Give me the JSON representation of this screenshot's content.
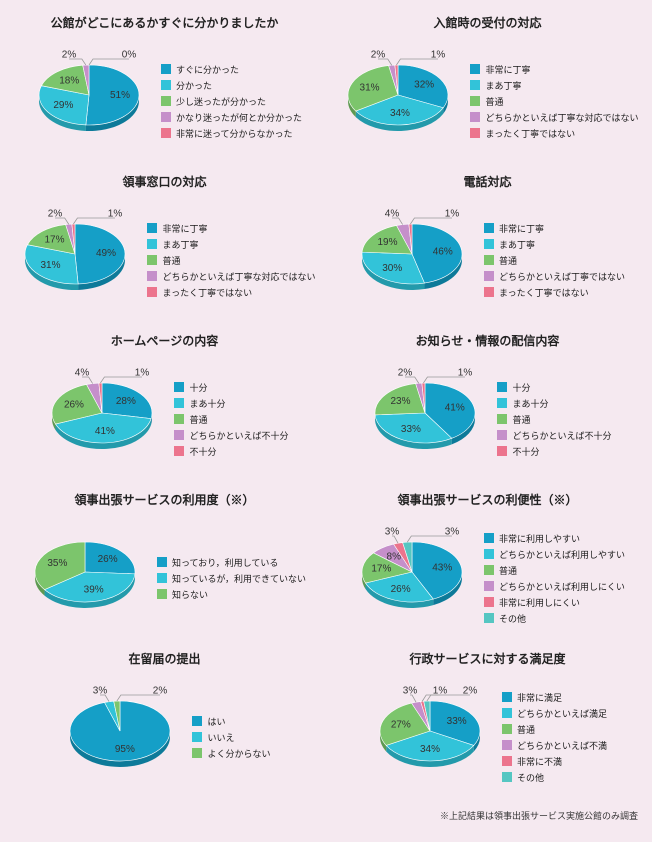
{
  "background_color": "#f5e9f0",
  "pie_radius": 50,
  "pie_3d_height": 6,
  "title_fontsize": 12,
  "legend_fontsize": 9,
  "footnote": "※上記結果は領事出張サービス実施公館のみ調査",
  "charts": [
    {
      "title": "公館がどこにあるかすぐに分かりましたか",
      "slices": [
        {
          "label": "すぐに分かった",
          "value": 51,
          "color": "#159fc7",
          "dark": "#0d7a99"
        },
        {
          "label": "分かった",
          "value": 29,
          "color": "#32c3d9",
          "dark": "#239aab"
        },
        {
          "label": "少し迷ったが分かった",
          "value": 18,
          "color": "#7cc56c",
          "dark": "#5e9a52"
        },
        {
          "label": "かなり迷ったが何とか分かった",
          "value": 2,
          "color": "#c58fca",
          "dark": "#9a6d9e"
        },
        {
          "label": "非常に迷って分からなかった",
          "value": 0,
          "color": "#ec748d",
          "dark": "#b95a6e"
        }
      ]
    },
    {
      "title": "入館時の受付の対応",
      "slices": [
        {
          "label": "非常に丁寧",
          "value": 32,
          "color": "#159fc7",
          "dark": "#0d7a99"
        },
        {
          "label": "まあ丁寧",
          "value": 34,
          "color": "#32c3d9",
          "dark": "#239aab"
        },
        {
          "label": "普通",
          "value": 31,
          "color": "#7cc56c",
          "dark": "#5e9a52"
        },
        {
          "label": "どちらかといえば丁寧な対応ではない",
          "value": 2,
          "color": "#c58fca",
          "dark": "#9a6d9e"
        },
        {
          "label": "まったく丁寧ではない",
          "value": 1,
          "color": "#ec748d",
          "dark": "#b95a6e"
        }
      ]
    },
    {
      "title": "領事窓口の対応",
      "slices": [
        {
          "label": "非常に丁寧",
          "value": 49,
          "color": "#159fc7",
          "dark": "#0d7a99"
        },
        {
          "label": "まあ丁寧",
          "value": 31,
          "color": "#32c3d9",
          "dark": "#239aab"
        },
        {
          "label": "普通",
          "value": 17,
          "color": "#7cc56c",
          "dark": "#5e9a52"
        },
        {
          "label": "どちらかといえば丁寧な対応ではない",
          "value": 2,
          "color": "#c58fca",
          "dark": "#9a6d9e"
        },
        {
          "label": "まったく丁寧ではない",
          "value": 1,
          "color": "#ec748d",
          "dark": "#b95a6e"
        }
      ]
    },
    {
      "title": "電話対応",
      "slices": [
        {
          "label": "非常に丁寧",
          "value": 46,
          "color": "#159fc7",
          "dark": "#0d7a99"
        },
        {
          "label": "まあ丁寧",
          "value": 30,
          "color": "#32c3d9",
          "dark": "#239aab"
        },
        {
          "label": "普通",
          "value": 19,
          "color": "#7cc56c",
          "dark": "#5e9a52"
        },
        {
          "label": "どちらかといえば丁寧ではない",
          "value": 4,
          "color": "#c58fca",
          "dark": "#9a6d9e"
        },
        {
          "label": "まったく丁寧ではない",
          "value": 1,
          "color": "#ec748d",
          "dark": "#b95a6e"
        }
      ]
    },
    {
      "title": "ホームページの内容",
      "slices": [
        {
          "label": "十分",
          "value": 28,
          "color": "#159fc7",
          "dark": "#0d7a99"
        },
        {
          "label": "まあ十分",
          "value": 41,
          "color": "#32c3d9",
          "dark": "#239aab"
        },
        {
          "label": "普通",
          "value": 26,
          "color": "#7cc56c",
          "dark": "#5e9a52"
        },
        {
          "label": "どちらかといえば不十分",
          "value": 4,
          "color": "#c58fca",
          "dark": "#9a6d9e"
        },
        {
          "label": "不十分",
          "value": 1,
          "color": "#ec748d",
          "dark": "#b95a6e"
        }
      ]
    },
    {
      "title": "お知らせ・情報の配信内容",
      "slices": [
        {
          "label": "十分",
          "value": 41,
          "color": "#159fc7",
          "dark": "#0d7a99"
        },
        {
          "label": "まあ十分",
          "value": 33,
          "color": "#32c3d9",
          "dark": "#239aab"
        },
        {
          "label": "普通",
          "value": 23,
          "color": "#7cc56c",
          "dark": "#5e9a52"
        },
        {
          "label": "どちらかといえば不十分",
          "value": 2,
          "color": "#c58fca",
          "dark": "#9a6d9e"
        },
        {
          "label": "不十分",
          "value": 1,
          "color": "#ec748d",
          "dark": "#b95a6e"
        }
      ]
    },
    {
      "title": "領事出張サービスの利用度（※）",
      "slices": [
        {
          "label": "知っており，利用している",
          "value": 26,
          "color": "#159fc7",
          "dark": "#0d7a99"
        },
        {
          "label": "知っているが，利用できていない",
          "value": 39,
          "color": "#32c3d9",
          "dark": "#239aab"
        },
        {
          "label": "知らない",
          "value": 35,
          "color": "#7cc56c",
          "dark": "#5e9a52"
        }
      ]
    },
    {
      "title": "領事出張サービスの利便性（※）",
      "slices": [
        {
          "label": "非常に利用しやすい",
          "value": 43,
          "color": "#159fc7",
          "dark": "#0d7a99"
        },
        {
          "label": "どちらかといえば利用しやすい",
          "value": 26,
          "color": "#32c3d9",
          "dark": "#239aab"
        },
        {
          "label": "普通",
          "value": 17,
          "color": "#7cc56c",
          "dark": "#5e9a52"
        },
        {
          "label": "どちらかといえば利用しにくい",
          "value": 8,
          "color": "#c58fca",
          "dark": "#9a6d9e"
        },
        {
          "label": "非常に利用しにくい",
          "value": 3,
          "color": "#ec748d",
          "dark": "#b95a6e"
        },
        {
          "label": "その他",
          "value": 3,
          "color": "#55c6c2",
          "dark": "#3d9996"
        }
      ]
    },
    {
      "title": "在留届の提出",
      "slices": [
        {
          "label": "はい",
          "value": 95,
          "color": "#159fc7",
          "dark": "#0d7a99"
        },
        {
          "label": "いいえ",
          "value": 3,
          "color": "#32c3d9",
          "dark": "#239aab"
        },
        {
          "label": "よく分からない",
          "value": 2,
          "color": "#7cc56c",
          "dark": "#5e9a52"
        }
      ]
    },
    {
      "title": "行政サービスに対する満足度",
      "slices": [
        {
          "label": "非常に満足",
          "value": 33,
          "color": "#159fc7",
          "dark": "#0d7a99"
        },
        {
          "label": "どちらかといえば満足",
          "value": 34,
          "color": "#32c3d9",
          "dark": "#239aab"
        },
        {
          "label": "普通",
          "value": 27,
          "color": "#7cc56c",
          "dark": "#5e9a52"
        },
        {
          "label": "どちらかといえば不満",
          "value": 3,
          "color": "#c58fca",
          "dark": "#9a6d9e"
        },
        {
          "label": "非常に不満",
          "value": 1,
          "color": "#ec748d",
          "dark": "#b95a6e"
        },
        {
          "label": "その他",
          "value": 2,
          "color": "#55c6c2",
          "dark": "#3d9996"
        }
      ]
    }
  ]
}
